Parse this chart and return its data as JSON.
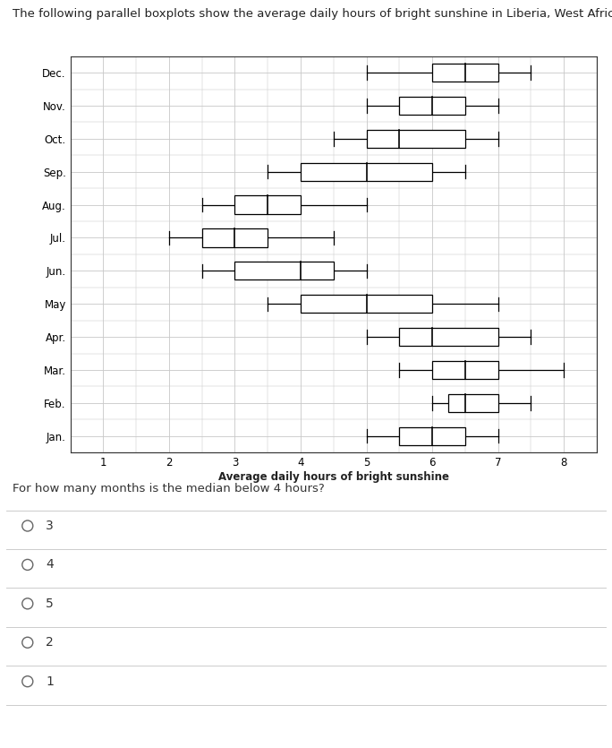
{
  "title": "The following parallel boxplots show the average daily hours of bright sunshine in Liberia, West Africa:",
  "xlabel": "Average daily hours of bright sunshine",
  "months": [
    "Dec.",
    "Nov.",
    "Oct.",
    "Sep.",
    "Aug.",
    "Jul.",
    "Jun.",
    "May",
    "Apr.",
    "Mar.",
    "Feb.",
    "Jan."
  ],
  "boxplot_data": {
    "Jan.": {
      "whislo": 5.0,
      "q1": 5.5,
      "med": 6.0,
      "q3": 6.5,
      "whishi": 7.0
    },
    "Feb.": {
      "whislo": 6.0,
      "q1": 6.25,
      "med": 6.5,
      "q3": 7.0,
      "whishi": 7.5
    },
    "Mar.": {
      "whislo": 5.5,
      "q1": 6.0,
      "med": 6.5,
      "q3": 7.0,
      "whishi": 8.0
    },
    "Apr.": {
      "whislo": 5.0,
      "q1": 5.5,
      "med": 6.0,
      "q3": 7.0,
      "whishi": 7.5
    },
    "May": {
      "whislo": 3.5,
      "q1": 4.0,
      "med": 5.0,
      "q3": 6.0,
      "whishi": 7.0
    },
    "Jun.": {
      "whislo": 2.5,
      "q1": 3.0,
      "med": 4.0,
      "q3": 4.5,
      "whishi": 5.0
    },
    "Jul.": {
      "whislo": 2.0,
      "q1": 2.5,
      "med": 3.0,
      "q3": 3.5,
      "whishi": 4.5
    },
    "Aug.": {
      "whislo": 2.5,
      "q1": 3.0,
      "med": 3.5,
      "q3": 4.0,
      "whishi": 5.0
    },
    "Sep.": {
      "whislo": 3.5,
      "q1": 4.0,
      "med": 5.0,
      "q3": 6.0,
      "whishi": 6.5
    },
    "Oct.": {
      "whislo": 4.5,
      "q1": 5.0,
      "med": 5.5,
      "q3": 6.5,
      "whishi": 7.0
    },
    "Nov.": {
      "whislo": 5.0,
      "q1": 5.5,
      "med": 6.0,
      "q3": 6.5,
      "whishi": 7.0
    },
    "Dec.": {
      "whislo": 5.0,
      "q1": 6.0,
      "med": 6.5,
      "q3": 7.0,
      "whishi": 7.5
    }
  },
  "xlim": [
    0.5,
    8.5
  ],
  "xticks": [
    1,
    2,
    3,
    4,
    5,
    6,
    7,
    8
  ],
  "question": "For how many months is the median below 4 hours?",
  "options": [
    "3",
    "4",
    "5",
    "2",
    "1"
  ],
  "bg_color": "#ffffff",
  "box_color": "#000000",
  "grid_color": "#c8c8c8",
  "title_fontsize": 9.5,
  "axis_fontsize": 8.5,
  "xlabel_fontsize": 8.5
}
